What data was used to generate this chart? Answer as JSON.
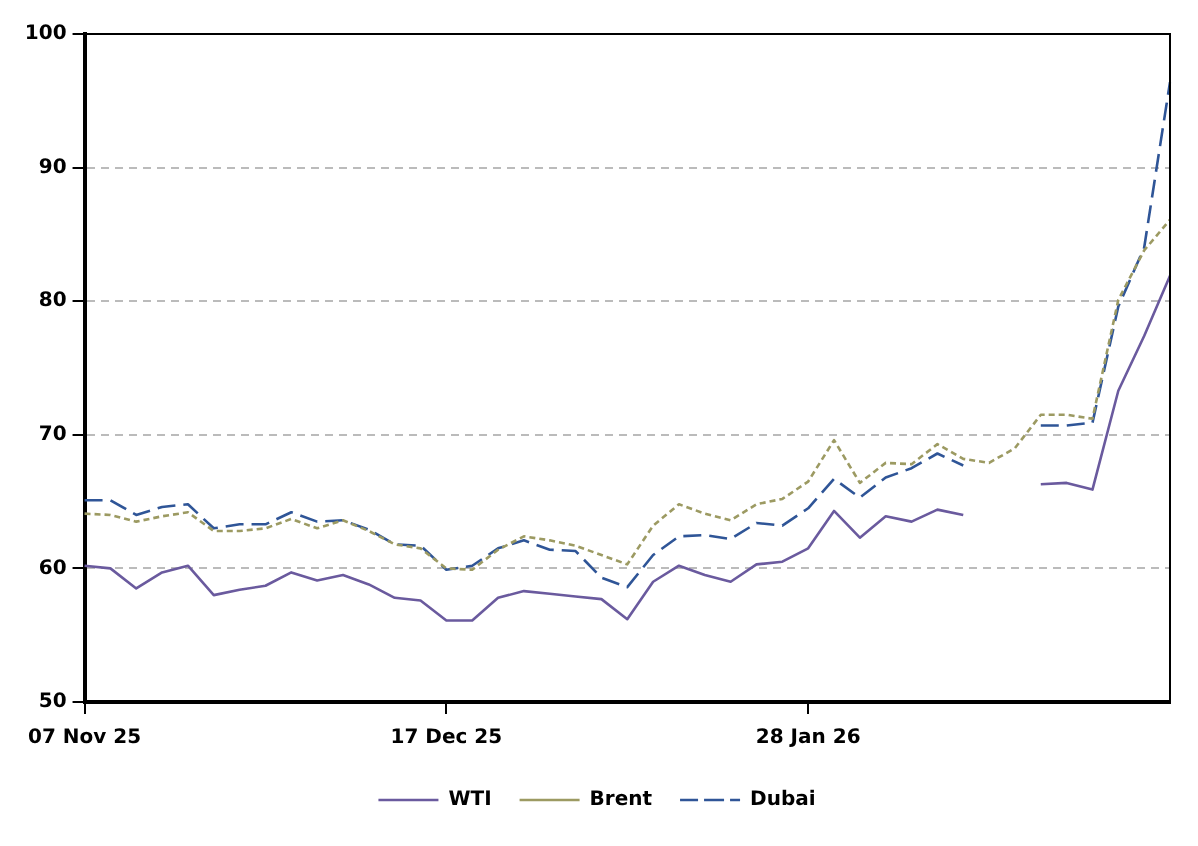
{
  "chart_data": {
    "type": "line",
    "categories": [
      "07 Nov 25",
      null,
      null,
      null,
      null,
      null,
      null,
      null,
      null,
      null,
      null,
      null,
      null,
      null,
      "17 Dec 25",
      null,
      null,
      null,
      null,
      null,
      null,
      null,
      null,
      null,
      null,
      null,
      null,
      null,
      "28 Jan 26",
      null,
      null,
      null,
      null,
      null,
      null,
      null,
      null,
      null,
      null,
      null,
      null,
      null,
      null
    ],
    "series": [
      {
        "name": "WTI",
        "color": "#6a5a9e",
        "line_style": "solid",
        "values": [
          60.2,
          60.0,
          58.5,
          59.7,
          60.2,
          58.0,
          58.4,
          58.7,
          59.7,
          59.1,
          59.5,
          58.8,
          57.8,
          57.6,
          56.1,
          56.1,
          57.8,
          58.3,
          58.1,
          57.9,
          57.7,
          56.2,
          59.0,
          60.2,
          59.5,
          59.0,
          60.3,
          60.5,
          61.5,
          64.3,
          62.3,
          63.9,
          63.5,
          64.4,
          64.0,
          null,
          null,
          66.3,
          66.4,
          65.9,
          73.3,
          77.4,
          81.9
        ]
      },
      {
        "name": "Brent",
        "color": "#9c9a62",
        "line_style": "dotted",
        "values": [
          64.1,
          64.0,
          63.5,
          63.9,
          64.2,
          62.8,
          62.8,
          63.0,
          63.7,
          63.0,
          63.6,
          62.8,
          61.8,
          61.5,
          60.0,
          59.9,
          61.4,
          62.4,
          62.1,
          61.7,
          61.0,
          60.3,
          63.2,
          64.8,
          64.1,
          63.6,
          64.8,
          65.2,
          66.5,
          69.6,
          66.4,
          67.9,
          67.8,
          69.3,
          68.2,
          67.9,
          69.0,
          71.5,
          71.5,
          71.2,
          80.1,
          83.8,
          86.1
        ]
      },
      {
        "name": "Dubai",
        "color": "#2f5597",
        "line_style": "dashed",
        "values": [
          65.1,
          65.1,
          64.0,
          64.6,
          64.8,
          63.0,
          63.3,
          63.3,
          64.2,
          63.5,
          63.6,
          62.9,
          61.8,
          61.7,
          59.9,
          60.2,
          61.5,
          62.1,
          61.4,
          61.3,
          59.3,
          58.6,
          61.0,
          62.4,
          62.5,
          62.2,
          63.4,
          63.2,
          64.5,
          66.7,
          65.3,
          66.8,
          67.5,
          68.6,
          67.7,
          null,
          null,
          70.7,
          70.7,
          70.9,
          79.6,
          84.0,
          96.4
        ]
      }
    ],
    "ylim": [
      50,
      100
    ],
    "yticks": [
      50,
      60,
      70,
      80,
      90,
      100
    ],
    "grid": "y",
    "legend": "bottom",
    "marker": "none"
  }
}
